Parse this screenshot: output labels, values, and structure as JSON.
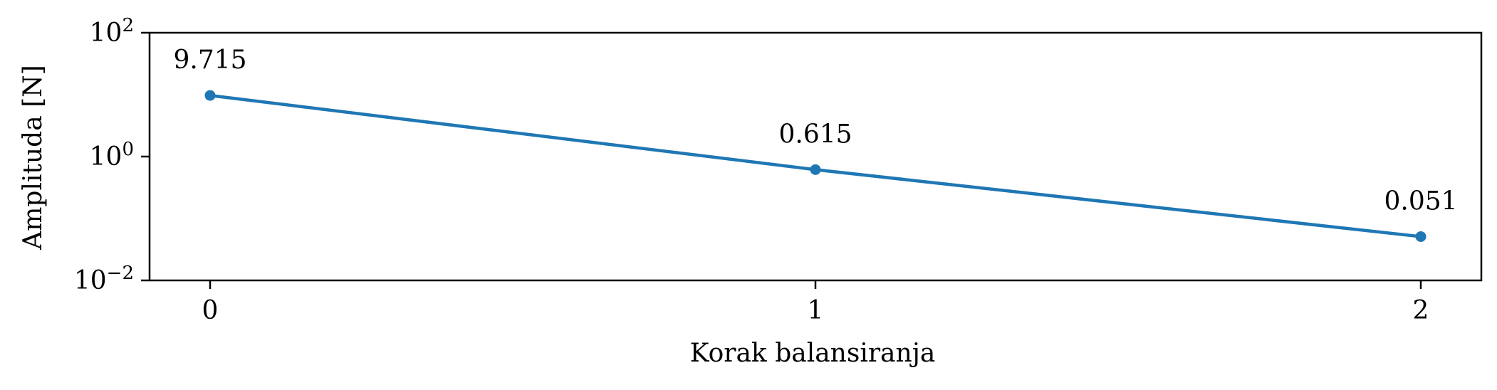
{
  "chart_data": {
    "type": "line",
    "x": [
      0,
      1,
      2
    ],
    "series": [
      {
        "values": [
          9.715,
          0.615,
          0.051
        ],
        "data_labels": [
          "9.715",
          "0.615",
          "0.051"
        ]
      }
    ],
    "xlabel": "Korak balansiranja",
    "ylabel": "Amplituda [N]",
    "xticks": [
      0,
      1,
      2
    ],
    "xtick_labels": [
      "0",
      "1",
      "2"
    ],
    "yscale": "log",
    "ylim": [
      0.01,
      100
    ],
    "yticks": [
      0.01,
      1,
      100
    ],
    "ytick_labels": [
      {
        "base": "10",
        "exp": "−2"
      },
      {
        "base": "10",
        "exp": "0"
      },
      {
        "base": "10",
        "exp": "2"
      }
    ],
    "xlim": [
      -0.1,
      2.1
    ],
    "grid": false,
    "line_color": "#1f77b4"
  }
}
